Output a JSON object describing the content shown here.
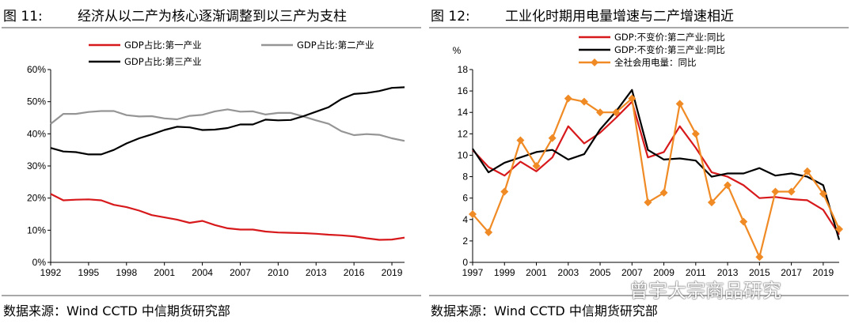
{
  "figure_left": {
    "number": "图 11:",
    "title": "经济从以二产为核心逐渐调整到以三产为支柱",
    "source": "数据来源：Wind CCTD 中信期货研究部"
  },
  "figure_right": {
    "number": "图 12:",
    "title": "工业化时期用电量增速与二产增速相近",
    "source": "数据来源：Wind CCTD 中信期货研究部",
    "watermark": "曾宇大宗商品研究"
  },
  "chart_data": [
    {
      "type": "line",
      "title": "经济从以二产为核心逐渐调整到以三产为支柱",
      "xlabel": "",
      "ylabel": "",
      "x": [
        1992,
        1993,
        1994,
        1995,
        1996,
        1997,
        1998,
        1999,
        2000,
        2001,
        2002,
        2003,
        2004,
        2005,
        2006,
        2007,
        2008,
        2009,
        2010,
        2011,
        2012,
        2013,
        2014,
        2015,
        2016,
        2017,
        2018,
        2019,
        2020
      ],
      "xlim": [
        1992,
        2020
      ],
      "x_ticks": [
        "1992",
        "1995",
        "1998",
        "2001",
        "2004",
        "2007",
        "2010",
        "2013",
        "2016",
        "2019"
      ],
      "ylim": [
        0,
        60
      ],
      "y_ticks": [
        "0%",
        "10%",
        "20%",
        "30%",
        "40%",
        "50%",
        "60%"
      ],
      "series": [
        {
          "name": "GDP占比:第一产业",
          "color": "#d7191c",
          "values": [
            21.3,
            19.3,
            19.5,
            19.6,
            19.3,
            17.9,
            17.2,
            16.1,
            14.7,
            14.0,
            13.3,
            12.3,
            12.9,
            11.6,
            10.6,
            10.2,
            10.2,
            9.6,
            9.3,
            9.2,
            9.1,
            8.9,
            8.6,
            8.4,
            8.1,
            7.5,
            7.0,
            7.1,
            7.7
          ]
        },
        {
          "name": "GDP占比:第二产业",
          "color": "#959595",
          "values": [
            43.1,
            46.2,
            46.2,
            46.8,
            47.1,
            47.1,
            45.8,
            45.4,
            45.5,
            44.8,
            44.5,
            45.6,
            45.9,
            47.0,
            47.6,
            46.9,
            47.0,
            46.0,
            46.5,
            46.5,
            45.4,
            44.2,
            43.1,
            40.8,
            39.6,
            39.9,
            39.7,
            38.6,
            37.8
          ]
        },
        {
          "name": "GDP占比:第三产业",
          "color": "#000000",
          "values": [
            35.6,
            34.5,
            34.3,
            33.6,
            33.6,
            35.0,
            37.0,
            38.6,
            39.8,
            41.2,
            42.2,
            42.0,
            41.2,
            41.3,
            41.8,
            42.9,
            42.9,
            44.4,
            44.2,
            44.3,
            45.5,
            46.9,
            48.3,
            50.8,
            52.4,
            52.7,
            53.3,
            54.3,
            54.5
          ]
        }
      ],
      "legend": "top"
    },
    {
      "type": "line",
      "title": "工业化时期用电量增速与二产增速相近",
      "xlabel": "",
      "ylabel": "%",
      "x": [
        1997,
        1998,
        1999,
        2000,
        2001,
        2002,
        2003,
        2004,
        2005,
        2006,
        2007,
        2008,
        2009,
        2010,
        2011,
        2012,
        2013,
        2014,
        2015,
        2016,
        2017,
        2018,
        2019,
        2020
      ],
      "xlim": [
        1997,
        2020
      ],
      "x_ticks": [
        "1997",
        "1999",
        "2001",
        "2003",
        "2005",
        "2007",
        "2009",
        "2011",
        "2013",
        "2015",
        "2017",
        "2019"
      ],
      "ylim": [
        0,
        18
      ],
      "y_ticks": [
        "0",
        "2",
        "4",
        "6",
        "8",
        "10",
        "12",
        "14",
        "16",
        "18"
      ],
      "series": [
        {
          "name": "GDP:不变价:第二产业:同比",
          "color": "#d7191c",
          "values": [
            10.5,
            8.9,
            8.1,
            9.4,
            8.5,
            9.8,
            12.7,
            11.1,
            12.1,
            13.5,
            15.0,
            9.8,
            10.3,
            12.7,
            10.7,
            8.4,
            8.0,
            7.2,
            6.0,
            6.1,
            5.9,
            5.8,
            4.9,
            2.6
          ]
        },
        {
          "name": "GDP:不变价:第三产业:同比",
          "color": "#000000",
          "values": [
            10.6,
            8.4,
            9.3,
            9.8,
            10.3,
            10.5,
            9.6,
            10.1,
            12.4,
            14.1,
            16.1,
            10.5,
            9.6,
            9.7,
            9.5,
            8.0,
            8.3,
            8.3,
            8.8,
            8.1,
            8.3,
            8.0,
            7.2,
            2.1
          ]
        },
        {
          "name": "全社会用电量：同比",
          "color": "#f08a24",
          "marker": "diamond",
          "values": [
            4.5,
            2.8,
            6.6,
            11.4,
            9.0,
            11.6,
            15.3,
            15.0,
            14.0,
            14.0,
            15.3,
            5.6,
            6.5,
            14.8,
            12.0,
            5.6,
            7.2,
            3.8,
            0.5,
            6.6,
            6.6,
            8.5,
            6.4,
            3.1
          ]
        }
      ],
      "legend": "top-right"
    }
  ]
}
